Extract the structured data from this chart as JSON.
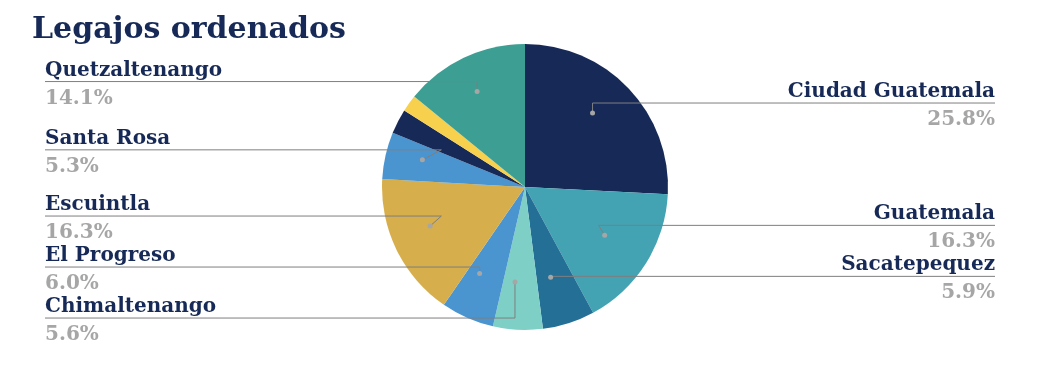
{
  "chart_data": {
    "type": "pie",
    "title": "Legajos ordenados",
    "categories": [
      "Ciudad Guatemala",
      "Guatemala",
      "Sacatepequez",
      "Chimaltenango",
      "El Progreso",
      "Escuintla",
      "Santa Rosa",
      null,
      null,
      "Quetzaltenango"
    ],
    "values": [
      25.8,
      16.3,
      5.9,
      5.6,
      6.0,
      16.3,
      5.3,
      2.8,
      1.9,
      14.1
    ],
    "colors": [
      "#172a57",
      "#43a3b2",
      "#246f96",
      "#7ecfc6",
      "#4a94d0",
      "#d6ae4b",
      "#4a94d0",
      "#172a57",
      "#f7d04e",
      "#3d9e93"
    ],
    "value_labels": [
      "25.8%",
      "16.3%",
      "5.9%",
      "5.6%",
      "6.0%",
      "16.3%",
      "5.3%",
      null,
      null,
      "14.1%"
    ]
  }
}
